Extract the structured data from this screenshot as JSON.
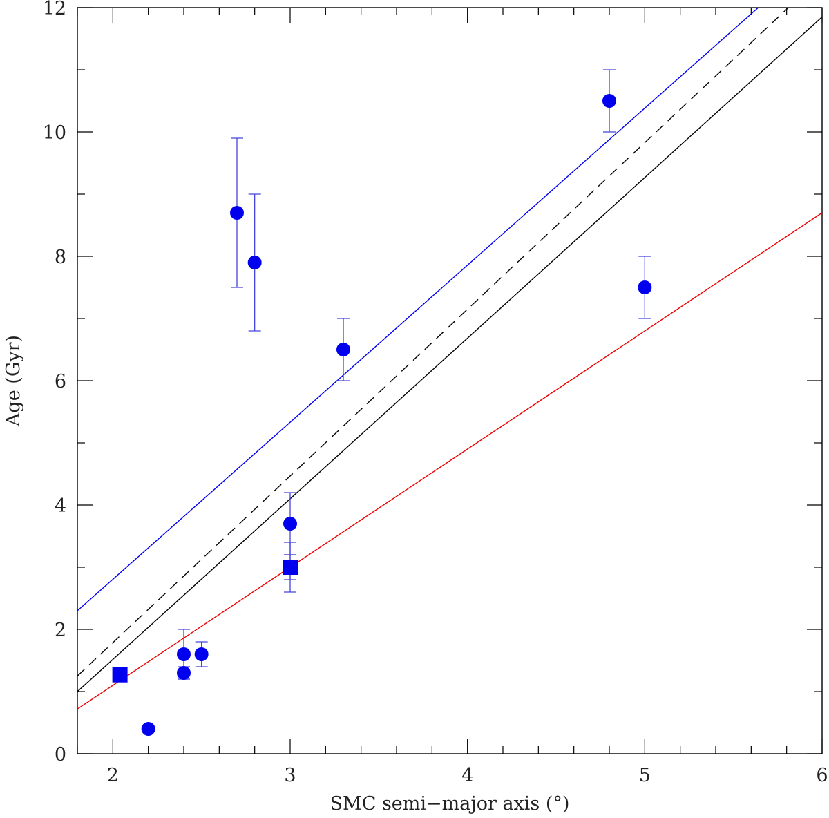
{
  "chart_data": {
    "type": "scatter",
    "title": "",
    "xlabel": "SMC semi−major axis (°)",
    "ylabel": "Age (Gyr)",
    "xlim": [
      1.8,
      6
    ],
    "ylim": [
      0,
      12
    ],
    "x_ticks": [
      "2",
      "3",
      "4",
      "5",
      "6"
    ],
    "y_ticks": [
      "0",
      "2",
      "4",
      "6",
      "8",
      "10",
      "12"
    ],
    "grid": false,
    "legend": "none",
    "colors": {
      "points": "#0000ee",
      "errorbars": "#4444dd",
      "line_blue": "#0000ee",
      "line_black": "#000000",
      "line_dashed": "#000000",
      "line_red": "#ee0000"
    },
    "series": [
      {
        "marker": "circle",
        "points": [
          {
            "x": 2.2,
            "y": 0.4
          },
          {
            "x": 2.4,
            "y": 1.6,
            "yerr_low": 0.4,
            "yerr_high": 0.4
          },
          {
            "x": 2.4,
            "y": 1.3,
            "yerr_low": 0.1,
            "yerr_high": 0.1
          },
          {
            "x": 2.5,
            "y": 1.6,
            "yerr_low": 0.2,
            "yerr_high": 0.2
          },
          {
            "x": 2.7,
            "y": 8.7,
            "yerr_low": 1.2,
            "yerr_high": 1.2
          },
          {
            "x": 2.8,
            "y": 7.9,
            "yerr_low": 1.1,
            "yerr_high": 1.1
          },
          {
            "x": 3.0,
            "y": 3.7,
            "yerr_low": 0.5,
            "yerr_high": 0.5
          },
          {
            "x": 3.3,
            "y": 6.5,
            "yerr_low": 0.5,
            "yerr_high": 0.5
          },
          {
            "x": 4.8,
            "y": 10.5,
            "yerr_low": 0.5,
            "yerr_high": 0.5
          },
          {
            "x": 5.0,
            "y": 7.5,
            "yerr_low": 0.5,
            "yerr_high": 0.5
          }
        ]
      },
      {
        "marker": "square",
        "points": [
          {
            "x": 2.04,
            "y": 1.27,
            "yerr_low": 0.07,
            "yerr_high": 0.07
          },
          {
            "x": 3.0,
            "y": 3.0,
            "yerr_low": 0.4,
            "yerr_high": 0.4
          },
          {
            "x": 3.0,
            "y": 3.0,
            "yerr_low": 0.2,
            "yerr_high": 0.2
          }
        ]
      }
    ],
    "lines": [
      {
        "style": "solid",
        "color": "line_blue",
        "x": [
          1.8,
          5.64
        ],
        "y": [
          2.3,
          12.0
        ]
      },
      {
        "style": "dashed",
        "color": "line_dashed",
        "x": [
          1.8,
          5.81
        ],
        "y": [
          1.25,
          12.0
        ]
      },
      {
        "style": "solid",
        "color": "line_black",
        "x": [
          1.8,
          6.0
        ],
        "y": [
          1.0,
          11.85
        ]
      },
      {
        "style": "solid",
        "color": "line_red",
        "x": [
          1.8,
          6.0
        ],
        "y": [
          0.72,
          8.7
        ]
      }
    ]
  }
}
